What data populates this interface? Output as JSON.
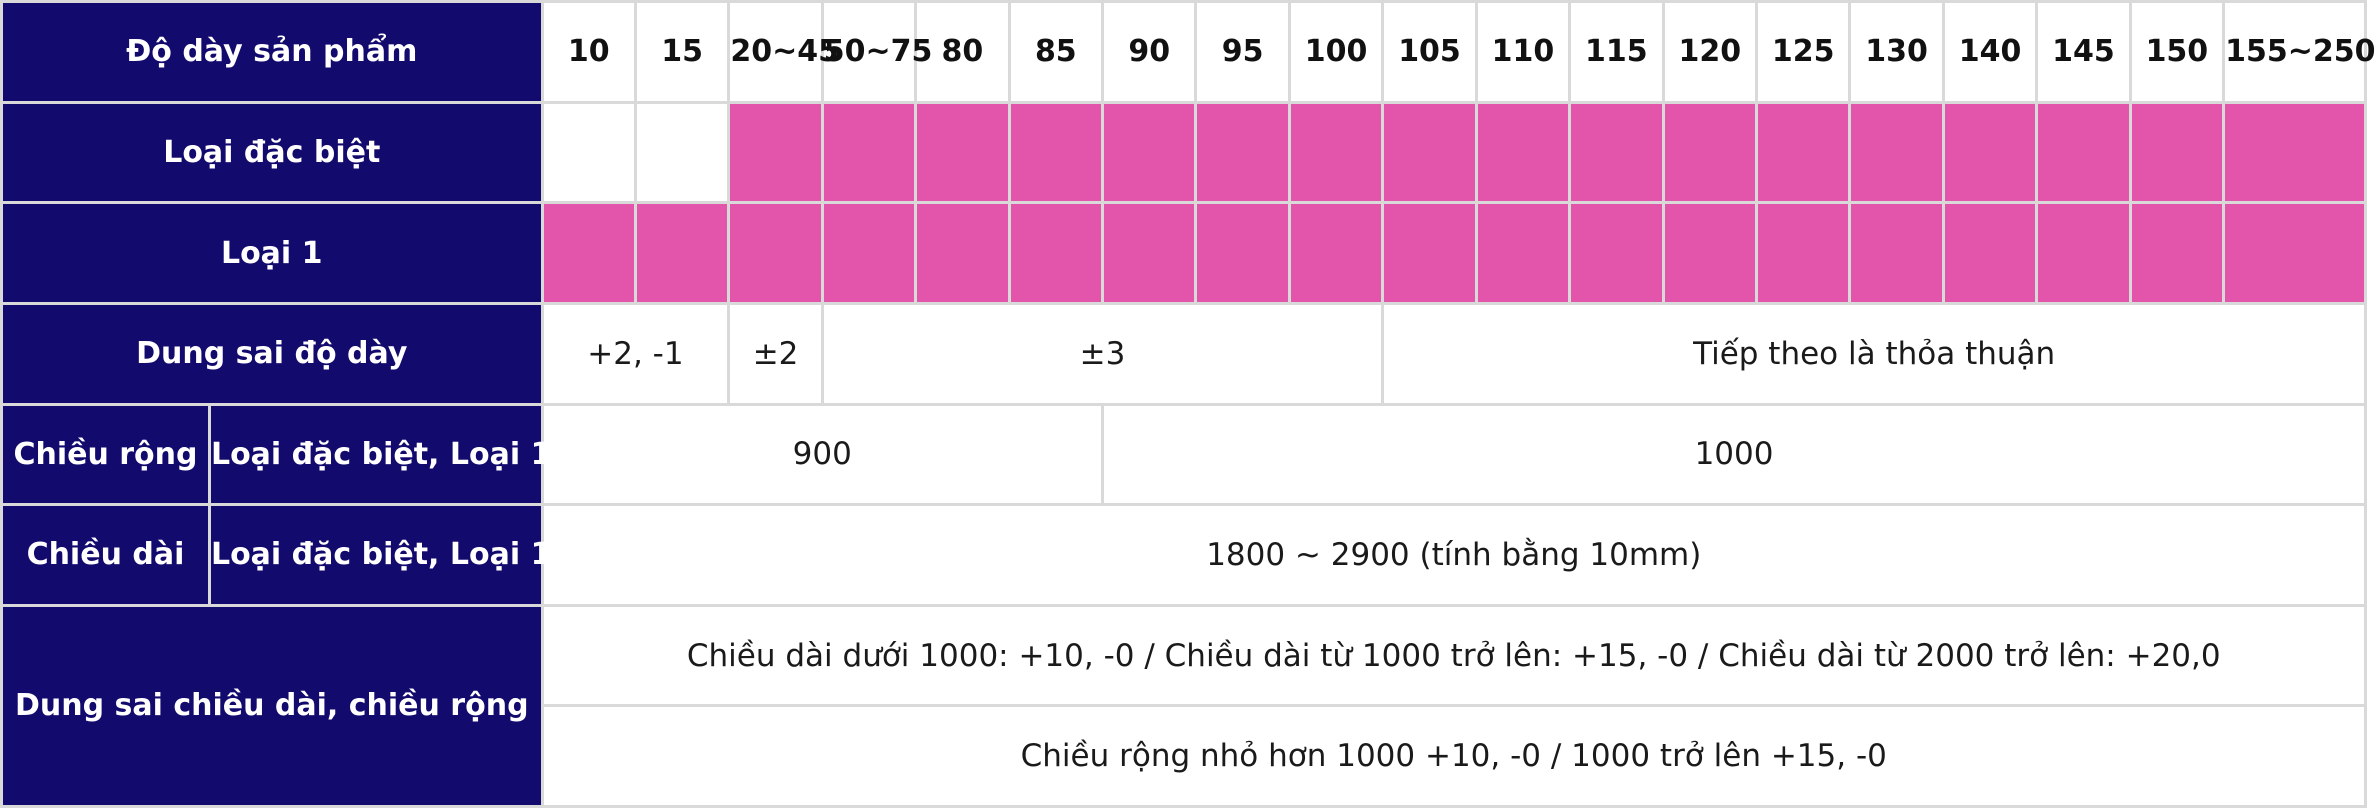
{
  "table": {
    "header_label": "Độ dày sản phẩm",
    "thickness_values": [
      "10",
      "15",
      "20~45",
      "50~75",
      "80",
      "85",
      "90",
      "95",
      "100",
      "105",
      "110",
      "115",
      "120",
      "125",
      "130",
      "140",
      "145",
      "150",
      "155~250"
    ],
    "row_special": {
      "label": "Loại đặc biệt",
      "applies": [
        false,
        false,
        true,
        true,
        true,
        true,
        true,
        true,
        true,
        true,
        true,
        true,
        true,
        true,
        true,
        true,
        true,
        true,
        true
      ]
    },
    "row_grade1": {
      "label": "Loại 1",
      "applies": [
        true,
        true,
        true,
        true,
        true,
        true,
        true,
        true,
        true,
        true,
        true,
        true,
        true,
        true,
        true,
        true,
        true,
        true,
        true
      ]
    },
    "row_thickness_tolerance": {
      "label": "Dung sai độ dày",
      "values": [
        "+2, -1",
        "±2",
        "±3",
        "Tiếp theo là thỏa thuận"
      ]
    },
    "row_width": {
      "label": "Chiều rộng",
      "sub_label": "Loại đặc biệt, Loại 1",
      "values": [
        "900",
        "1000"
      ]
    },
    "row_length": {
      "label": "Chiều dài",
      "sub_label": "Loại đặc biệt, Loại 1",
      "value": "1800 ~ 2900 (tính bằng 10mm)"
    },
    "row_dimension_tolerance": {
      "label": "Dung sai chiều dài, chiều rộng",
      "length_rule": "Chiều dài dưới 1000: +10, -0 / Chiều dài từ 1000 trở lên: +15, -0 / Chiều dài từ 2000 trở lên: +20,0",
      "width_rule": "Chiều rộng nhỏ hơn 1000 +10, -0 / 1000 trở lên +15, -0"
    },
    "colors": {
      "header_bg": "#130a6e",
      "mark_fill": "#e255aa",
      "grid_line": "#d9d9d9"
    }
  }
}
